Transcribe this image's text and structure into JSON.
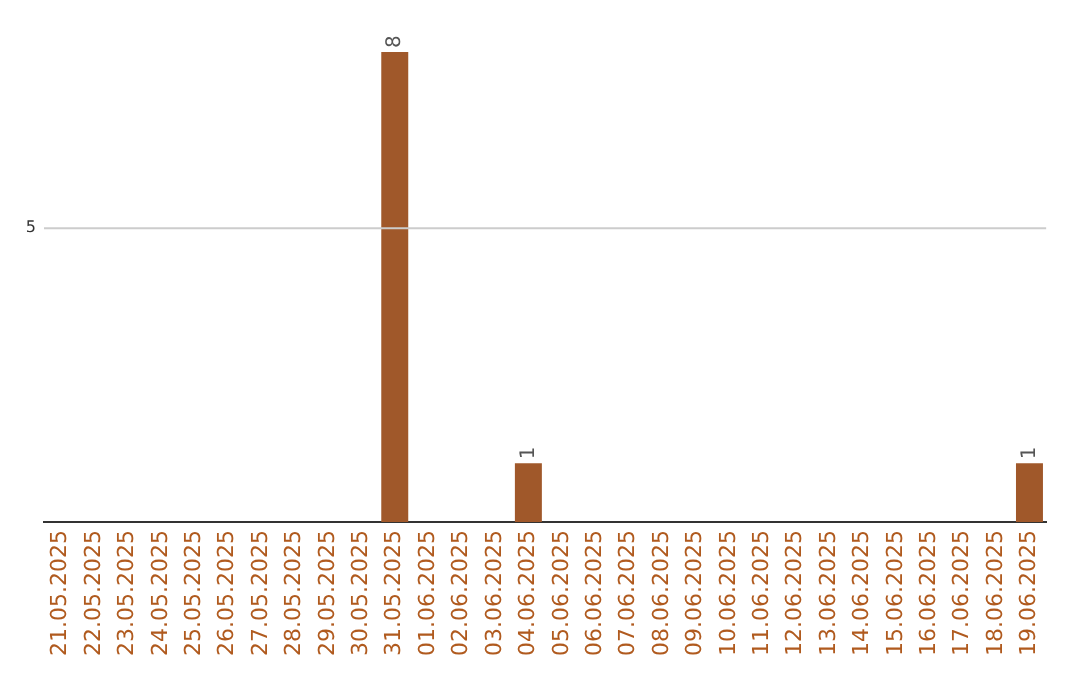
{
  "chart_data": {
    "type": "bar",
    "categories": [
      "21.05.2025",
      "22.05.2025",
      "23.05.2025",
      "24.05.2025",
      "25.05.2025",
      "26.05.2025",
      "27.05.2025",
      "28.05.2025",
      "29.05.2025",
      "30.05.2025",
      "31.05.2025",
      "01.06.2025",
      "02.06.2025",
      "03.06.2025",
      "04.06.2025",
      "05.06.2025",
      "06.06.2025",
      "07.06.2025",
      "08.06.2025",
      "09.06.2025",
      "10.06.2025",
      "11.06.2025",
      "12.06.2025",
      "13.06.2025",
      "14.06.2025",
      "15.06.2025",
      "16.06.2025",
      "17.06.2025",
      "18.06.2025",
      "19.06.2025"
    ],
    "values": [
      0,
      0,
      0,
      0,
      0,
      0,
      0,
      0,
      0,
      0,
      8,
      0,
      0,
      0,
      1,
      0,
      0,
      0,
      0,
      0,
      0,
      0,
      0,
      0,
      0,
      0,
      0,
      0,
      0,
      1
    ],
    "value_labels": [
      null,
      null,
      null,
      null,
      null,
      null,
      null,
      null,
      null,
      null,
      "8",
      null,
      null,
      null,
      "1",
      null,
      null,
      null,
      null,
      null,
      null,
      null,
      null,
      null,
      null,
      null,
      null,
      null,
      null,
      "1"
    ],
    "color": "#a0582a",
    "ref_lines": [
      {
        "axis": "y",
        "value": 5,
        "label": "5",
        "color": "#cccccc"
      }
    ],
    "legend": false
  }
}
